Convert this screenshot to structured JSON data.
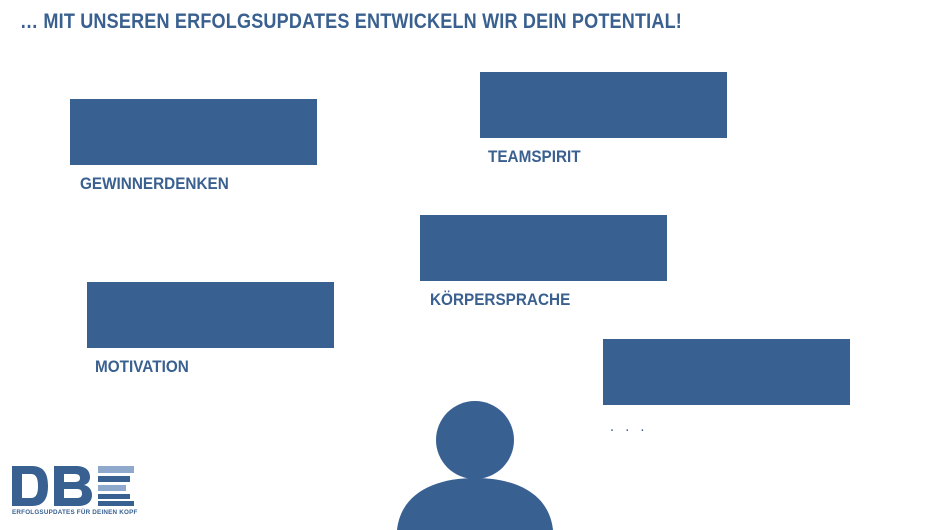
{
  "headline": "… MIT UNSEREN ERFOLGSUPDATES ENTWICKELN WIR DEIN POTENTIAL!",
  "items": [
    {
      "label": "GEWINNERDENKEN"
    },
    {
      "label": "TEAMSPIRIT"
    },
    {
      "label": "KÖRPERSPRACHE"
    },
    {
      "label": "MOTIVATION"
    },
    {
      "label": ". . ."
    }
  ],
  "logo": {
    "letters": "DBE",
    "tagline": "ERFOLGSUPDATES FÜR DEINEN KOPF"
  },
  "colors": {
    "primary": "#386192",
    "text": "#3a6090",
    "logo_light": "#8fa9cc",
    "background": "#ffffff"
  },
  "icons": [
    "person-icon"
  ]
}
